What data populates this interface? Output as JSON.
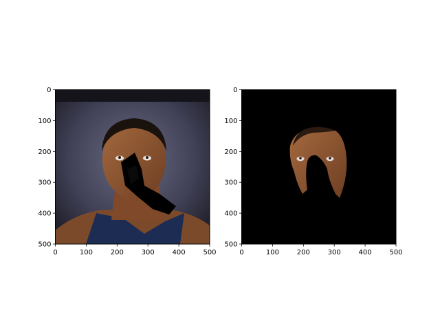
{
  "colors": {
    "background": "#ffffff",
    "axes_edge": "#000000",
    "mask_fill": "#000000",
    "skin_tone": "#8a5230",
    "photo_bg": "#3f3f55",
    "jersey": "#1c2c52"
  },
  "chart_data": [
    {
      "type": "image",
      "xlim": [
        0,
        500
      ],
      "ylim": [
        500,
        0
      ],
      "x_ticks": [
        0,
        100,
        200,
        300,
        400,
        500
      ],
      "y_ticks": [
        0,
        100,
        200,
        300,
        400,
        500
      ],
      "x_tick_labels": [
        "0",
        "100",
        "200",
        "300",
        "400",
        "500"
      ],
      "y_tick_labels": [
        "0",
        "100",
        "200",
        "300",
        "400",
        "500"
      ],
      "grid": false,
      "title": "",
      "xlabel": "",
      "ylabel": "",
      "content": "photo-with-occlusion"
    },
    {
      "type": "image",
      "xlim": [
        0,
        500
      ],
      "ylim": [
        500,
        0
      ],
      "x_ticks": [
        0,
        100,
        200,
        300,
        400,
        500
      ],
      "y_ticks": [
        0,
        100,
        200,
        300,
        400,
        500
      ],
      "x_tick_labels": [
        "0",
        "100",
        "200",
        "300",
        "400",
        "500"
      ],
      "y_tick_labels": [
        "0",
        "100",
        "200",
        "300",
        "400",
        "500"
      ],
      "grid": false,
      "title": "",
      "xlabel": "",
      "ylabel": "",
      "content": "segmented-face-mask"
    }
  ]
}
